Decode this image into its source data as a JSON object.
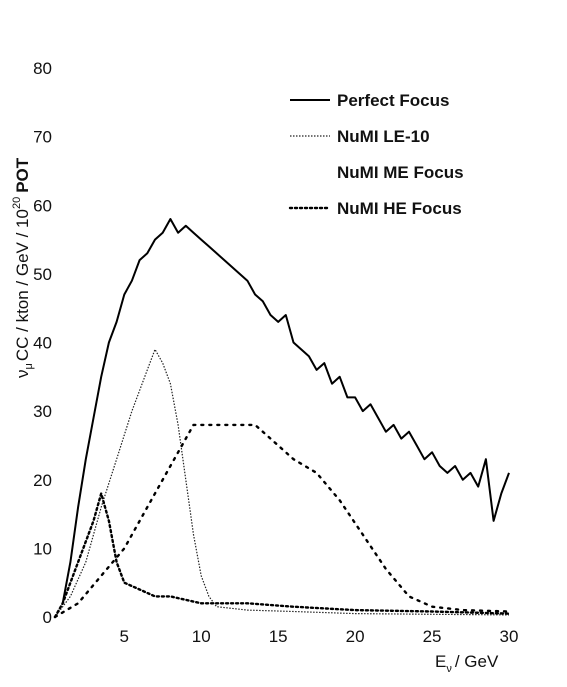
{
  "chart_data": {
    "type": "line",
    "xlabel": "E",
    "xlabel_sub": "ν",
    "xlabel_unit": "/ GeV",
    "ylabel_nu": "ν",
    "ylabel_sub": "μ",
    "ylabel_main": "CC / kton / GeV / 10",
    "ylabel_exp": "20",
    "ylabel_end": "POT",
    "xlim": [
      0.5,
      30
    ],
    "ylim": [
      0,
      80
    ],
    "x_ticks": [
      5,
      10,
      15,
      20,
      25,
      30
    ],
    "y_ticks": [
      0,
      10,
      20,
      30,
      40,
      50,
      60,
      70,
      80
    ],
    "legend_position": "top-right",
    "series": [
      {
        "name": "Perfect Focus",
        "style": "solid",
        "points": [
          [
            1.0,
            2
          ],
          [
            1.5,
            8
          ],
          [
            2.0,
            16
          ],
          [
            2.5,
            23
          ],
          [
            3.0,
            29
          ],
          [
            3.5,
            35
          ],
          [
            4.0,
            40
          ],
          [
            4.5,
            43
          ],
          [
            5.0,
            47
          ],
          [
            5.5,
            49
          ],
          [
            6.0,
            52
          ],
          [
            6.5,
            53
          ],
          [
            7.0,
            55
          ],
          [
            7.5,
            56
          ],
          [
            8.0,
            58
          ],
          [
            8.5,
            56
          ],
          [
            9.0,
            57
          ],
          [
            9.5,
            56
          ],
          [
            10.0,
            55
          ],
          [
            10.5,
            54
          ],
          [
            11.0,
            53
          ],
          [
            11.5,
            52
          ],
          [
            12.0,
            51
          ],
          [
            12.5,
            50
          ],
          [
            13.0,
            49
          ],
          [
            13.5,
            47
          ],
          [
            14.0,
            46
          ],
          [
            14.5,
            44
          ],
          [
            15.0,
            43
          ],
          [
            15.5,
            44
          ],
          [
            16.0,
            40
          ],
          [
            16.5,
            39
          ],
          [
            17.0,
            38
          ],
          [
            17.5,
            36
          ],
          [
            18.0,
            37
          ],
          [
            18.5,
            34
          ],
          [
            19.0,
            35
          ],
          [
            19.5,
            32
          ],
          [
            20.0,
            32
          ],
          [
            20.5,
            30
          ],
          [
            21.0,
            31
          ],
          [
            21.5,
            29
          ],
          [
            22.0,
            27
          ],
          [
            22.5,
            28
          ],
          [
            23.0,
            26
          ],
          [
            23.5,
            27
          ],
          [
            24.0,
            25
          ],
          [
            24.5,
            23
          ],
          [
            25.0,
            24
          ],
          [
            25.5,
            22
          ],
          [
            26.0,
            21
          ],
          [
            26.5,
            22
          ],
          [
            27.0,
            20
          ],
          [
            27.5,
            21
          ],
          [
            28.0,
            19
          ],
          [
            28.5,
            23
          ],
          [
            29.0,
            14
          ],
          [
            29.5,
            18
          ],
          [
            30.0,
            21
          ]
        ]
      },
      {
        "name": "NuMI LE-10",
        "style": "dense-dot",
        "points": [
          [
            0.5,
            0
          ],
          [
            1.5,
            3
          ],
          [
            2.5,
            8
          ],
          [
            3.5,
            16
          ],
          [
            4.5,
            23
          ],
          [
            5.5,
            30
          ],
          [
            6.5,
            36
          ],
          [
            7.0,
            39
          ],
          [
            7.5,
            37
          ],
          [
            8.0,
            34
          ],
          [
            8.5,
            28
          ],
          [
            9.0,
            20
          ],
          [
            9.5,
            12
          ],
          [
            10.0,
            6
          ],
          [
            10.5,
            3
          ],
          [
            11.0,
            1.5
          ],
          [
            13.0,
            1
          ],
          [
            16.0,
            0.8
          ],
          [
            20.0,
            0.5
          ],
          [
            25.0,
            0.4
          ],
          [
            30.0,
            0.3
          ]
        ]
      },
      {
        "name": "NuMI ME Focus",
        "style": "none",
        "points": []
      },
      {
        "name": "NuMI HE Focus",
        "style": "sparse-dot",
        "points": [
          [
            0.5,
            0
          ],
          [
            1.0,
            2
          ],
          [
            2.0,
            8
          ],
          [
            3.0,
            14
          ],
          [
            3.5,
            18
          ],
          [
            4.0,
            14
          ],
          [
            4.5,
            8
          ],
          [
            5.0,
            5
          ],
          [
            6.0,
            4
          ],
          [
            7.0,
            3
          ],
          [
            8.0,
            3
          ],
          [
            10.0,
            2
          ],
          [
            13.0,
            2
          ],
          [
            16.0,
            1.5
          ],
          [
            20.0,
            1
          ],
          [
            25.0,
            0.8
          ],
          [
            30.0,
            0.5
          ]
        ]
      },
      {
        "name": "NuMI HE Focus",
        "style": "sparse-dot-wide",
        "points": [
          [
            0.5,
            0
          ],
          [
            2.0,
            2
          ],
          [
            3.5,
            6
          ],
          [
            5.0,
            10
          ],
          [
            6.5,
            16
          ],
          [
            8.0,
            22
          ],
          [
            9.5,
            28
          ],
          [
            10.5,
            28
          ],
          [
            12.0,
            28
          ],
          [
            13.5,
            28
          ],
          [
            14.5,
            26
          ],
          [
            16.0,
            23
          ],
          [
            17.5,
            21
          ],
          [
            19.0,
            17
          ],
          [
            20.5,
            12
          ],
          [
            22.0,
            7
          ],
          [
            23.5,
            3
          ],
          [
            25.0,
            1.5
          ],
          [
            27.0,
            1
          ],
          [
            30.0,
            0.8
          ]
        ]
      }
    ]
  }
}
